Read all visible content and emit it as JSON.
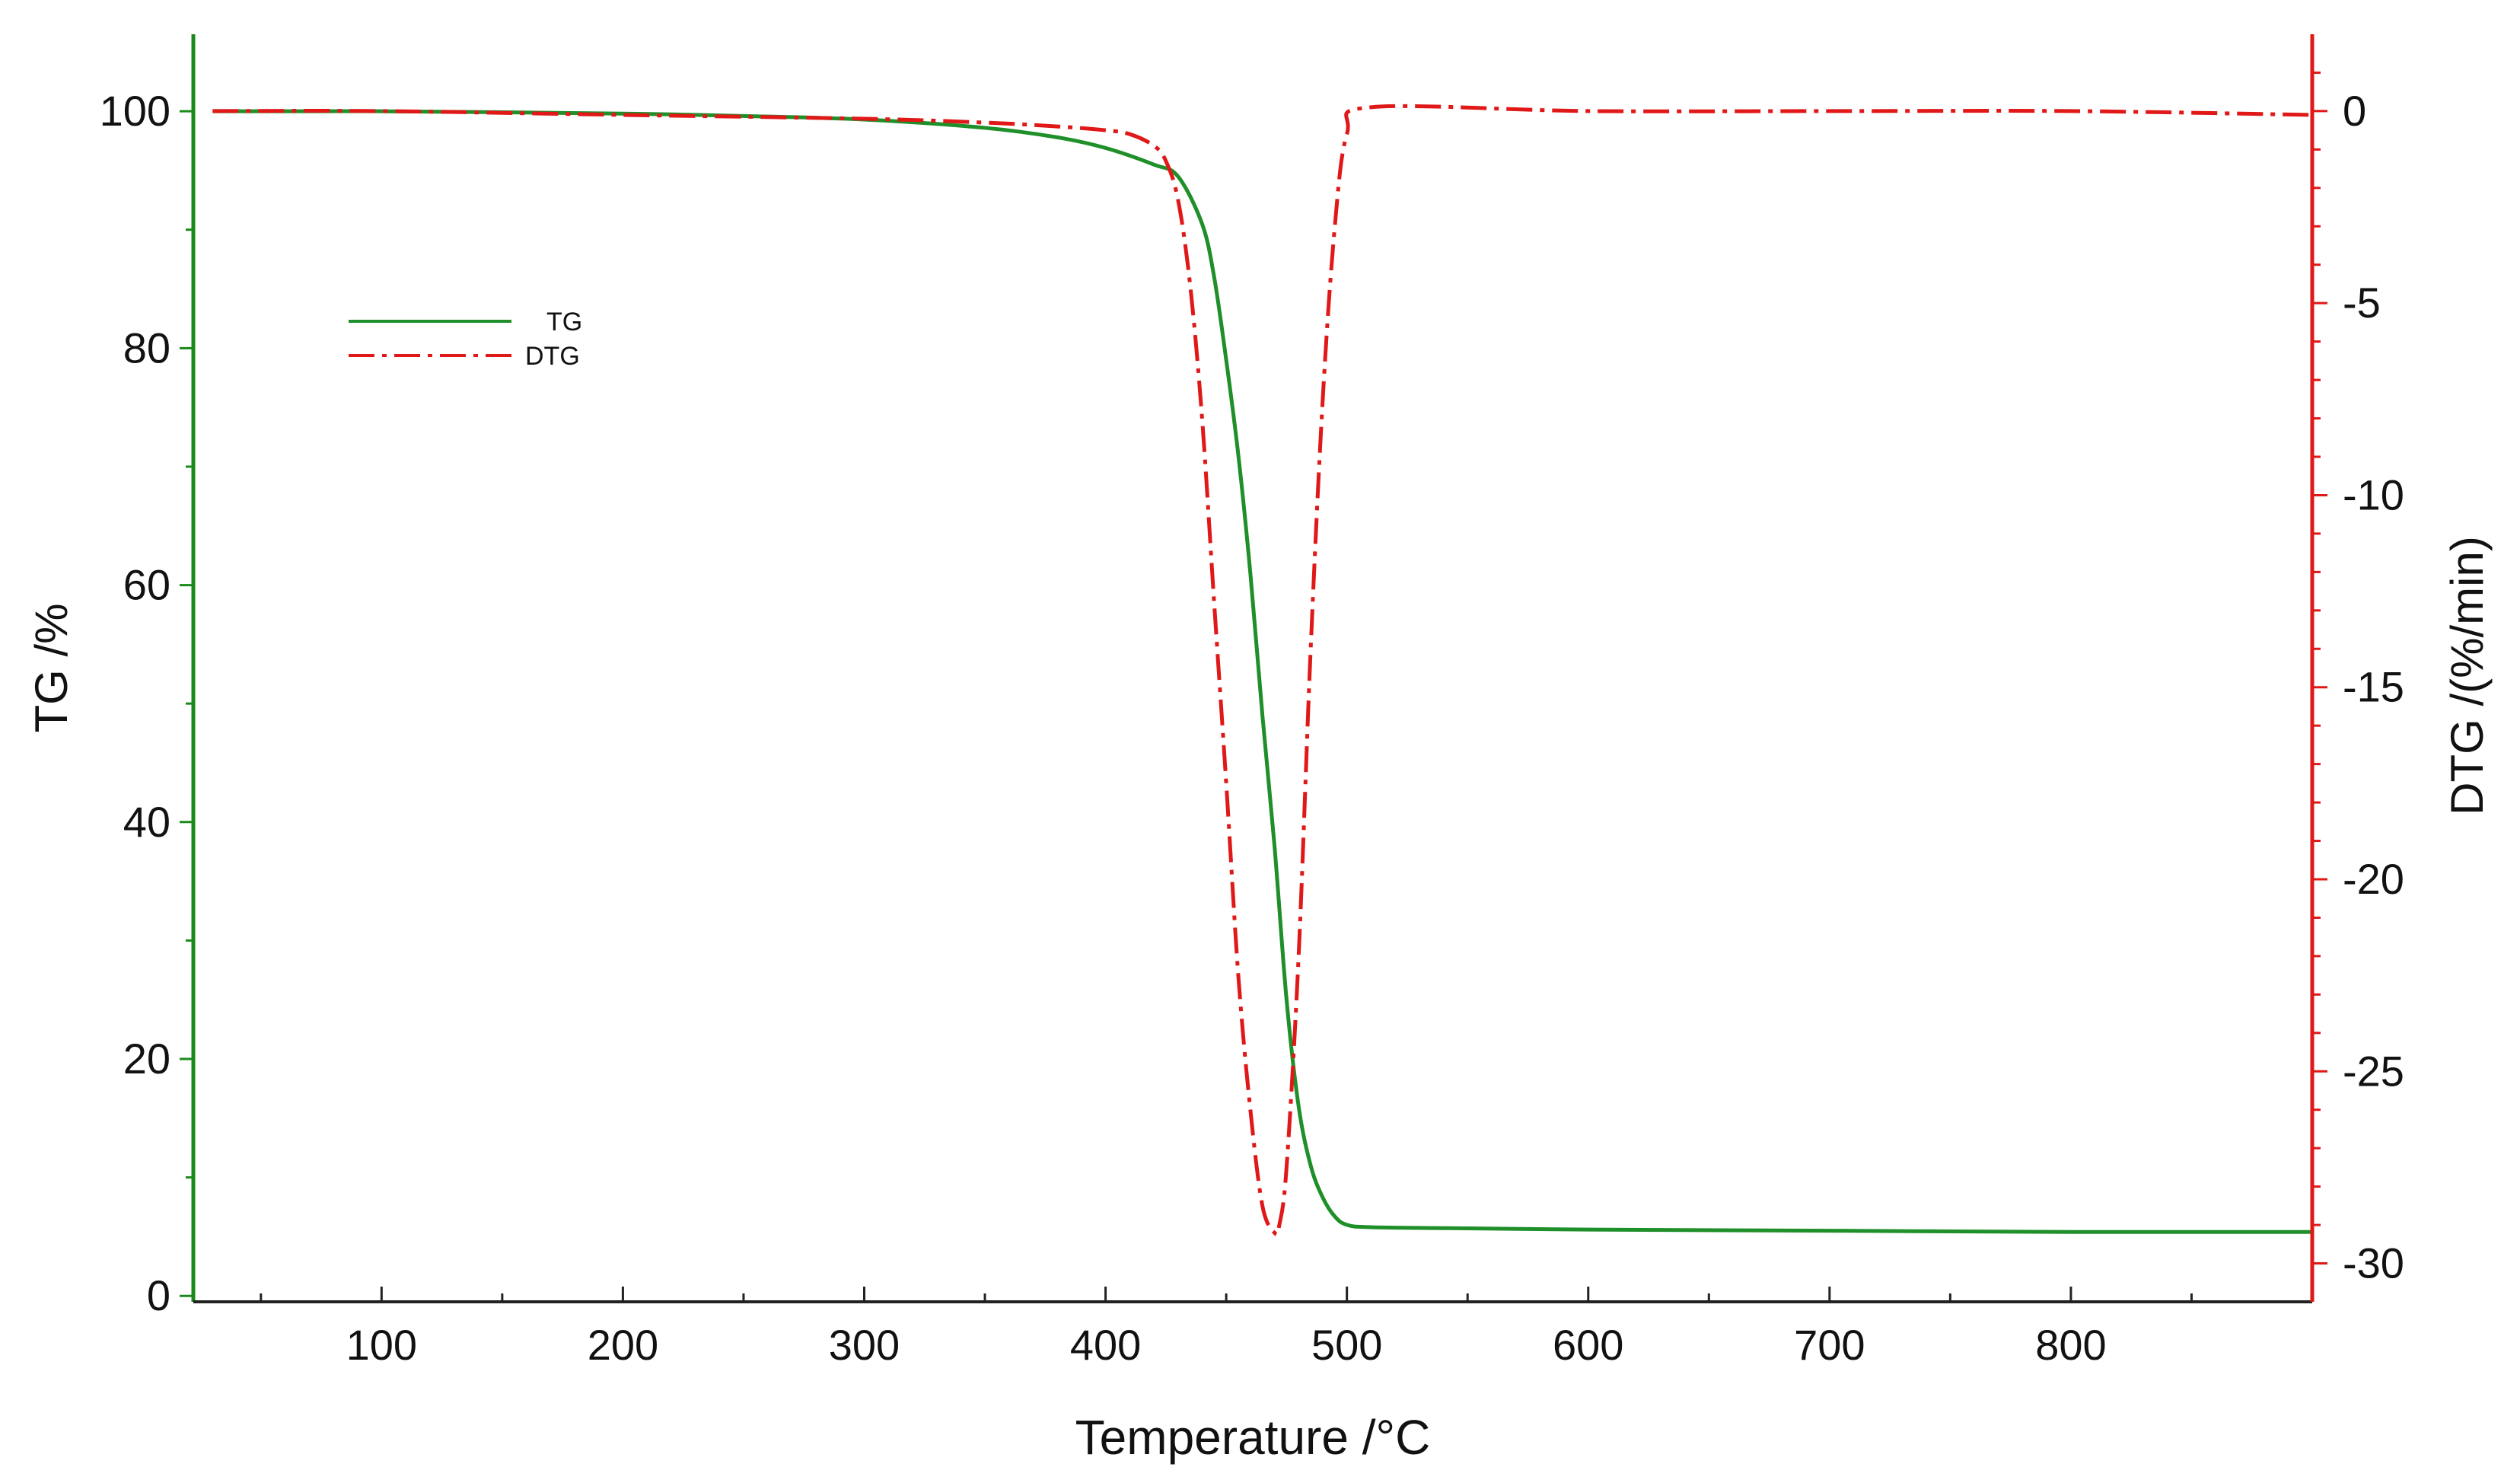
{
  "chart_data": {
    "type": "line",
    "title": "",
    "xlabel": "Temperature /°C",
    "xlim": [
      22,
      900
    ],
    "x_ticks": [
      100,
      200,
      300,
      400,
      500,
      600,
      700,
      800
    ],
    "left_axis": {
      "label": "TG /%",
      "ylim": [
        -0.5,
        106.5
      ],
      "ticks": [
        0,
        20,
        40,
        60,
        80,
        100
      ],
      "color": "#1a8a1a"
    },
    "right_axis": {
      "label": "DTG /(%/min)",
      "ylim": [
        -31,
        2
      ],
      "ticks": [
        0,
        -5,
        -10,
        -15,
        -20,
        -25,
        -30
      ],
      "color": "#e01818"
    },
    "grid": false,
    "legend": {
      "placement": "upper-left",
      "entries": [
        "TG",
        "DTG"
      ]
    },
    "series": [
      {
        "name": "TG",
        "axis": "left",
        "color": "#1f8f2a",
        "style": "solid",
        "x": [
          30,
          100,
          200,
          250,
          300,
          350,
          380,
          400,
          420,
          430,
          440,
          445,
          450,
          455,
          460,
          465,
          470,
          475,
          480,
          485,
          490,
          495,
          500,
          510,
          550,
          600,
          700,
          800,
          880,
          900
        ],
        "y": [
          100,
          100,
          99.8,
          99.6,
          99.3,
          98.6,
          97.8,
          96.9,
          95.5,
          94.5,
          90.5,
          86,
          79,
          71,
          61,
          49,
          38,
          25,
          16,
          11,
          8.3,
          6.7,
          6.0,
          5.8,
          5.7,
          5.6,
          5.5,
          5.4,
          5.4,
          5.4
        ]
      },
      {
        "name": "DTG",
        "axis": "right",
        "color": "#e01818",
        "style": "dash-dot",
        "x": [
          30,
          100,
          200,
          300,
          350,
          380,
          400,
          410,
          420,
          425,
          430,
          435,
          440,
          445,
          450,
          455,
          460,
          465,
          470,
          472,
          475,
          480,
          485,
          490,
          495,
          500,
          510,
          600,
          700,
          800,
          900
        ],
        "y": [
          0,
          0,
          -0.1,
          -0.2,
          -0.3,
          -0.4,
          -0.5,
          -0.6,
          -0.9,
          -1.3,
          -2.3,
          -4.5,
          -8,
          -12.8,
          -17.5,
          -22.5,
          -26,
          -28.5,
          -29.2,
          -29,
          -27.5,
          -22,
          -14,
          -7.5,
          -3,
          -0.6,
          0.1,
          0,
          0,
          0,
          -0.1
        ]
      }
    ]
  }
}
